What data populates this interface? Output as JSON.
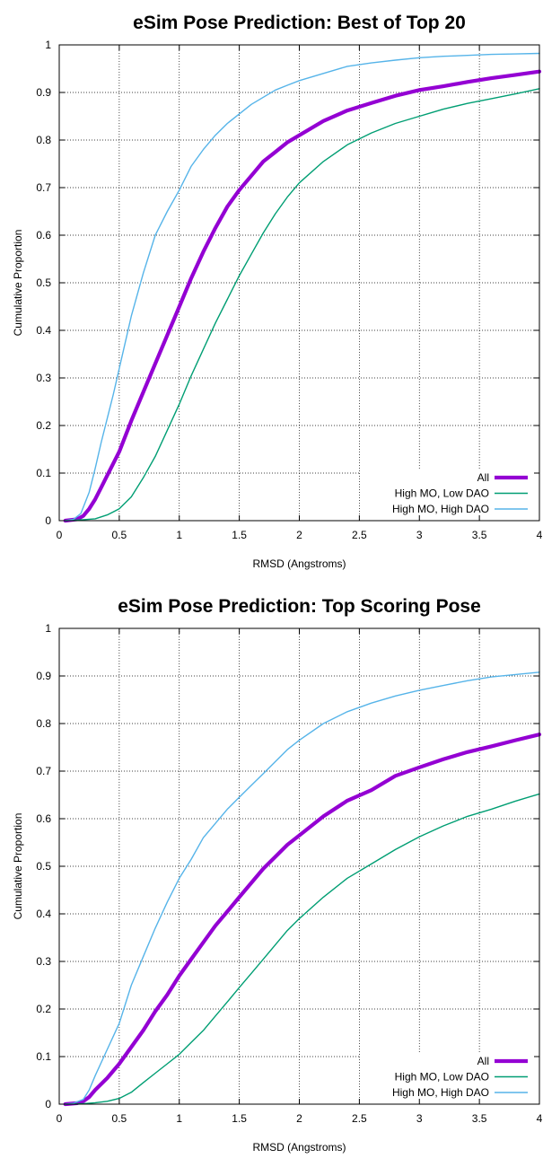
{
  "chart_data": [
    {
      "type": "line",
      "title": "eSim Pose Prediction: Best of Top 20",
      "xlabel": "RMSD (Angstroms)",
      "ylabel": "Cumulative Proportion",
      "xlim": [
        0,
        4
      ],
      "ylim": [
        0,
        1
      ],
      "x_ticks": [
        "0",
        "0.5",
        "1",
        "1.5",
        "2",
        "2.5",
        "3",
        "3.5",
        "4"
      ],
      "y_ticks": [
        "0",
        "0.1",
        "0.2",
        "0.3",
        "0.4",
        "0.5",
        "0.6",
        "0.7",
        "0.8",
        "0.9",
        "1"
      ],
      "grid": true,
      "legend_position": "bottom-right",
      "series": [
        {
          "name": "All",
          "color": "#9400d3",
          "points": [
            [
              0.05,
              0
            ],
            [
              0.15,
              0.003
            ],
            [
              0.2,
              0.01
            ],
            [
              0.25,
              0.025
            ],
            [
              0.3,
              0.045
            ],
            [
              0.35,
              0.07
            ],
            [
              0.4,
              0.095
            ],
            [
              0.5,
              0.145
            ],
            [
              0.6,
              0.21
            ],
            [
              0.7,
              0.27
            ],
            [
              0.8,
              0.33
            ],
            [
              0.9,
              0.39
            ],
            [
              1.0,
              0.45
            ],
            [
              1.1,
              0.51
            ],
            [
              1.2,
              0.565
            ],
            [
              1.3,
              0.615
            ],
            [
              1.4,
              0.66
            ],
            [
              1.5,
              0.695
            ],
            [
              1.6,
              0.725
            ],
            [
              1.7,
              0.755
            ],
            [
              1.8,
              0.775
            ],
            [
              1.9,
              0.795
            ],
            [
              2.0,
              0.81
            ],
            [
              2.2,
              0.84
            ],
            [
              2.4,
              0.862
            ],
            [
              2.6,
              0.878
            ],
            [
              2.8,
              0.893
            ],
            [
              3.0,
              0.905
            ],
            [
              3.2,
              0.913
            ],
            [
              3.4,
              0.922
            ],
            [
              3.6,
              0.93
            ],
            [
              3.8,
              0.937
            ],
            [
              4.0,
              0.944
            ]
          ]
        },
        {
          "name": "High MO, Low DAO",
          "color": "#009e73",
          "points": [
            [
              0.05,
              0
            ],
            [
              0.2,
              0.002
            ],
            [
              0.3,
              0.004
            ],
            [
              0.4,
              0.012
            ],
            [
              0.5,
              0.025
            ],
            [
              0.6,
              0.05
            ],
            [
              0.7,
              0.09
            ],
            [
              0.8,
              0.135
            ],
            [
              0.9,
              0.19
            ],
            [
              1.0,
              0.245
            ],
            [
              1.1,
              0.305
            ],
            [
              1.2,
              0.36
            ],
            [
              1.3,
              0.415
            ],
            [
              1.4,
              0.465
            ],
            [
              1.5,
              0.515
            ],
            [
              1.6,
              0.56
            ],
            [
              1.7,
              0.605
            ],
            [
              1.8,
              0.645
            ],
            [
              1.9,
              0.68
            ],
            [
              2.0,
              0.71
            ],
            [
              2.2,
              0.755
            ],
            [
              2.4,
              0.79
            ],
            [
              2.6,
              0.815
            ],
            [
              2.8,
              0.835
            ],
            [
              3.0,
              0.85
            ],
            [
              3.2,
              0.865
            ],
            [
              3.4,
              0.877
            ],
            [
              3.6,
              0.887
            ],
            [
              3.8,
              0.897
            ],
            [
              4.0,
              0.908
            ]
          ]
        },
        {
          "name": "High MO, High DAO",
          "color": "#56b4e9",
          "points": [
            [
              0.05,
              0
            ],
            [
              0.12,
              0.003
            ],
            [
              0.18,
              0.015
            ],
            [
              0.25,
              0.06
            ],
            [
              0.3,
              0.11
            ],
            [
              0.35,
              0.165
            ],
            [
              0.4,
              0.215
            ],
            [
              0.45,
              0.265
            ],
            [
              0.5,
              0.32
            ],
            [
              0.6,
              0.43
            ],
            [
              0.7,
              0.52
            ],
            [
              0.8,
              0.6
            ],
            [
              0.9,
              0.65
            ],
            [
              1.0,
              0.695
            ],
            [
              1.1,
              0.745
            ],
            [
              1.2,
              0.78
            ],
            [
              1.3,
              0.81
            ],
            [
              1.4,
              0.835
            ],
            [
              1.5,
              0.855
            ],
            [
              1.6,
              0.875
            ],
            [
              1.7,
              0.89
            ],
            [
              1.8,
              0.905
            ],
            [
              1.9,
              0.915
            ],
            [
              2.0,
              0.925
            ],
            [
              2.2,
              0.94
            ],
            [
              2.4,
              0.955
            ],
            [
              2.6,
              0.962
            ],
            [
              2.8,
              0.968
            ],
            [
              3.0,
              0.973
            ],
            [
              3.2,
              0.976
            ],
            [
              3.4,
              0.978
            ],
            [
              3.6,
              0.98
            ],
            [
              3.8,
              0.981
            ],
            [
              4.0,
              0.982
            ]
          ]
        }
      ]
    },
    {
      "type": "line",
      "title": "eSim Pose Prediction: Top Scoring Pose",
      "xlabel": "RMSD (Angstroms)",
      "ylabel": "Cumulative Proportion",
      "xlim": [
        0,
        4
      ],
      "ylim": [
        0,
        1
      ],
      "x_ticks": [
        "0",
        "0.5",
        "1",
        "1.5",
        "2",
        "2.5",
        "3",
        "3.5",
        "4"
      ],
      "y_ticks": [
        "0",
        "0.1",
        "0.2",
        "0.3",
        "0.4",
        "0.5",
        "0.6",
        "0.7",
        "0.8",
        "0.9",
        "1"
      ],
      "grid": true,
      "legend_position": "bottom-right",
      "series": [
        {
          "name": "All",
          "color": "#9400d3",
          "points": [
            [
              0.05,
              0
            ],
            [
              0.15,
              0.002
            ],
            [
              0.2,
              0.006
            ],
            [
              0.25,
              0.015
            ],
            [
              0.3,
              0.03
            ],
            [
              0.4,
              0.055
            ],
            [
              0.5,
              0.085
            ],
            [
              0.6,
              0.12
            ],
            [
              0.7,
              0.155
            ],
            [
              0.8,
              0.195
            ],
            [
              0.9,
              0.23
            ],
            [
              1.0,
              0.27
            ],
            [
              1.1,
              0.305
            ],
            [
              1.2,
              0.34
            ],
            [
              1.3,
              0.375
            ],
            [
              1.4,
              0.405
            ],
            [
              1.5,
              0.435
            ],
            [
              1.6,
              0.465
            ],
            [
              1.7,
              0.495
            ],
            [
              1.8,
              0.52
            ],
            [
              1.9,
              0.545
            ],
            [
              2.0,
              0.565
            ],
            [
              2.2,
              0.605
            ],
            [
              2.4,
              0.638
            ],
            [
              2.6,
              0.66
            ],
            [
              2.8,
              0.69
            ],
            [
              3.0,
              0.708
            ],
            [
              3.2,
              0.725
            ],
            [
              3.4,
              0.74
            ],
            [
              3.6,
              0.752
            ],
            [
              3.8,
              0.765
            ],
            [
              4.0,
              0.777
            ]
          ]
        },
        {
          "name": "High MO, Low DAO",
          "color": "#009e73",
          "points": [
            [
              0.05,
              0
            ],
            [
              0.2,
              0.001
            ],
            [
              0.3,
              0.003
            ],
            [
              0.4,
              0.006
            ],
            [
              0.5,
              0.012
            ],
            [
              0.6,
              0.025
            ],
            [
              0.7,
              0.045
            ],
            [
              0.8,
              0.065
            ],
            [
              0.9,
              0.085
            ],
            [
              1.0,
              0.105
            ],
            [
              1.1,
              0.13
            ],
            [
              1.2,
              0.155
            ],
            [
              1.3,
              0.185
            ],
            [
              1.4,
              0.215
            ],
            [
              1.5,
              0.245
            ],
            [
              1.6,
              0.275
            ],
            [
              1.7,
              0.305
            ],
            [
              1.8,
              0.335
            ],
            [
              1.9,
              0.365
            ],
            [
              2.0,
              0.39
            ],
            [
              2.2,
              0.435
            ],
            [
              2.4,
              0.475
            ],
            [
              2.6,
              0.505
            ],
            [
              2.8,
              0.535
            ],
            [
              3.0,
              0.562
            ],
            [
              3.2,
              0.585
            ],
            [
              3.4,
              0.605
            ],
            [
              3.6,
              0.62
            ],
            [
              3.8,
              0.637
            ],
            [
              4.0,
              0.652
            ]
          ]
        },
        {
          "name": "High MO, High DAO",
          "color": "#56b4e9",
          "points": [
            [
              0.05,
              0
            ],
            [
              0.12,
              0.002
            ],
            [
              0.2,
              0.01
            ],
            [
              0.25,
              0.03
            ],
            [
              0.3,
              0.06
            ],
            [
              0.4,
              0.115
            ],
            [
              0.5,
              0.17
            ],
            [
              0.6,
              0.25
            ],
            [
              0.7,
              0.31
            ],
            [
              0.8,
              0.37
            ],
            [
              0.9,
              0.425
            ],
            [
              1.0,
              0.475
            ],
            [
              1.1,
              0.515
            ],
            [
              1.2,
              0.56
            ],
            [
              1.3,
              0.59
            ],
            [
              1.4,
              0.62
            ],
            [
              1.5,
              0.645
            ],
            [
              1.6,
              0.67
            ],
            [
              1.7,
              0.695
            ],
            [
              1.8,
              0.72
            ],
            [
              1.9,
              0.745
            ],
            [
              2.0,
              0.765
            ],
            [
              2.2,
              0.8
            ],
            [
              2.4,
              0.825
            ],
            [
              2.6,
              0.843
            ],
            [
              2.8,
              0.858
            ],
            [
              3.0,
              0.87
            ],
            [
              3.2,
              0.88
            ],
            [
              3.4,
              0.89
            ],
            [
              3.6,
              0.898
            ],
            [
              3.8,
              0.903
            ],
            [
              4.0,
              0.908
            ]
          ]
        }
      ]
    }
  ]
}
